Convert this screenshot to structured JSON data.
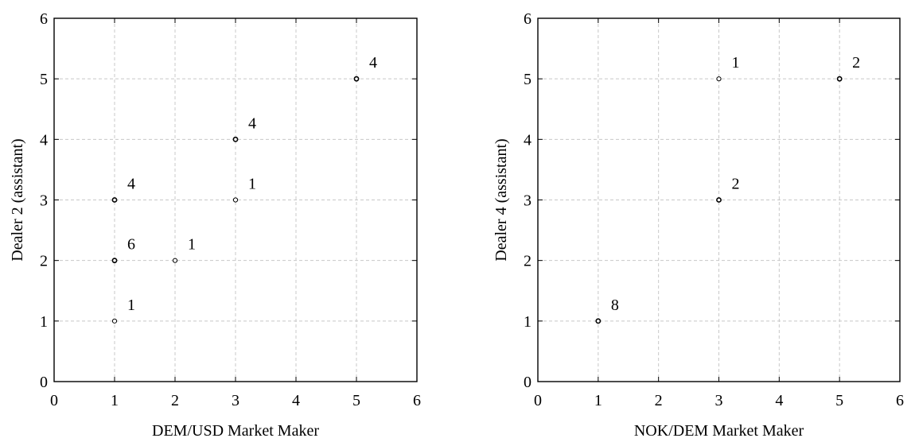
{
  "chart_data": [
    {
      "type": "scatter",
      "title": "",
      "xlabel": "DEM/USD Market Maker",
      "ylabel": "Dealer 2 (assistant)",
      "xlim": [
        0,
        6
      ],
      "ylim": [
        0,
        6
      ],
      "xticks": [
        "0",
        "1",
        "2",
        "3",
        "4",
        "5",
        "6"
      ],
      "yticks": [
        "0",
        "1",
        "2",
        "3",
        "4",
        "5",
        "6"
      ],
      "grid": true,
      "points": [
        {
          "x": 1,
          "y": 1,
          "count": "1"
        },
        {
          "x": 1,
          "y": 2,
          "count": "6"
        },
        {
          "x": 1,
          "y": 3,
          "count": "4"
        },
        {
          "x": 2,
          "y": 2,
          "count": "1"
        },
        {
          "x": 3,
          "y": 3,
          "count": "1"
        },
        {
          "x": 3,
          "y": 4,
          "count": "4"
        },
        {
          "x": 5,
          "y": 5,
          "count": "4"
        }
      ]
    },
    {
      "type": "scatter",
      "title": "",
      "xlabel": "NOK/DEM Market Maker",
      "ylabel": "Dealer 4 (assistant)",
      "xlim": [
        0,
        6
      ],
      "ylim": [
        0,
        6
      ],
      "xticks": [
        "0",
        "1",
        "2",
        "3",
        "4",
        "5",
        "6"
      ],
      "yticks": [
        "0",
        "1",
        "2",
        "3",
        "4",
        "5",
        "6"
      ],
      "grid": true,
      "points": [
        {
          "x": 1,
          "y": 1,
          "count": "8"
        },
        {
          "x": 3,
          "y": 3,
          "count": "2"
        },
        {
          "x": 3,
          "y": 5,
          "count": "1"
        },
        {
          "x": 5,
          "y": 5,
          "count": "2"
        }
      ]
    }
  ]
}
